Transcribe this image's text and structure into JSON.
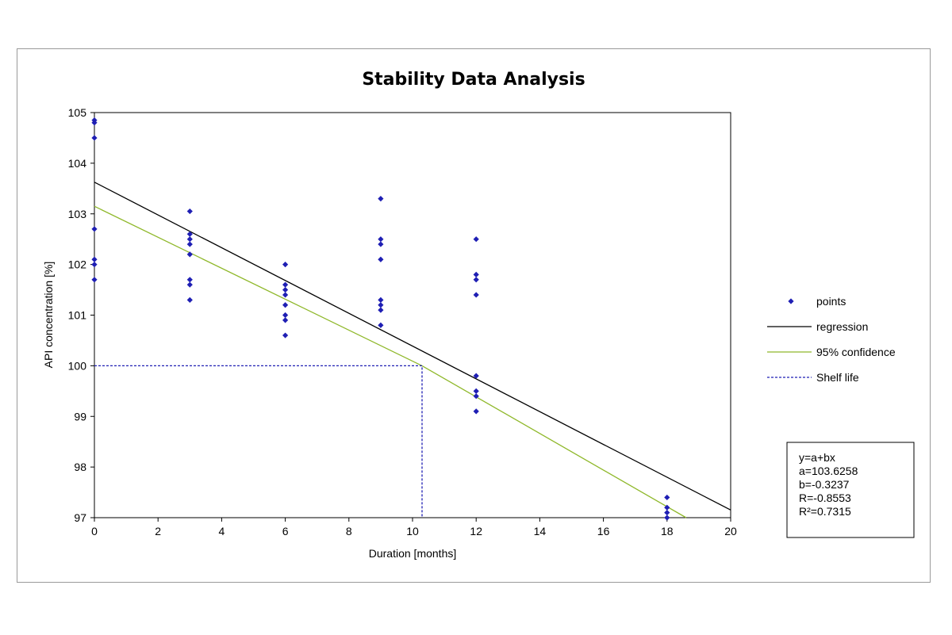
{
  "chart_data": {
    "type": "scatter",
    "title": "Stability Data Analysis",
    "xlabel": "Duration [months]",
    "ylabel": "API concentration [%]",
    "xlim": [
      0,
      20
    ],
    "ylim": [
      97,
      105
    ],
    "x_ticks": [
      0,
      2,
      4,
      6,
      8,
      10,
      12,
      14,
      16,
      18,
      20
    ],
    "y_ticks": [
      97,
      98,
      99,
      100,
      101,
      102,
      103,
      104,
      105
    ],
    "grid": false,
    "legend_position": "right",
    "legend": [
      {
        "label": "points",
        "kind": "marker",
        "color": "#1f1fb4"
      },
      {
        "label": "regression",
        "kind": "line",
        "color": "#000000"
      },
      {
        "label": "95% confidence",
        "kind": "line",
        "color": "#8fb82a"
      },
      {
        "label": "Shelf life",
        "kind": "dashed",
        "color": "#1f1fb4"
      }
    ],
    "series": [
      {
        "name": "points",
        "color": "#1f1fb4",
        "points": [
          [
            0,
            104.85
          ],
          [
            0,
            104.8
          ],
          [
            0,
            104.5
          ],
          [
            0,
            102.7
          ],
          [
            0,
            102.1
          ],
          [
            0,
            102.0
          ],
          [
            0,
            101.7
          ],
          [
            3,
            103.05
          ],
          [
            3,
            102.6
          ],
          [
            3,
            102.5
          ],
          [
            3,
            102.4
          ],
          [
            3,
            102.2
          ],
          [
            3,
            101.7
          ],
          [
            3,
            101.6
          ],
          [
            3,
            101.3
          ],
          [
            6,
            102.0
          ],
          [
            6,
            101.6
          ],
          [
            6,
            101.5
          ],
          [
            6,
            101.4
          ],
          [
            6,
            101.2
          ],
          [
            6,
            101.0
          ],
          [
            6,
            100.9
          ],
          [
            6,
            100.6
          ],
          [
            9,
            103.3
          ],
          [
            9,
            102.5
          ],
          [
            9,
            102.4
          ],
          [
            9,
            102.1
          ],
          [
            9,
            101.3
          ],
          [
            9,
            101.2
          ],
          [
            9,
            101.1
          ],
          [
            9,
            100.8
          ],
          [
            12,
            102.5
          ],
          [
            12,
            101.8
          ],
          [
            12,
            101.7
          ],
          [
            12,
            101.4
          ],
          [
            12,
            99.8
          ],
          [
            12,
            99.5
          ],
          [
            12,
            99.4
          ],
          [
            12,
            99.1
          ],
          [
            18,
            97.4
          ],
          [
            18,
            97.2
          ],
          [
            18,
            97.1
          ],
          [
            18,
            97.0
          ]
        ]
      },
      {
        "name": "regression",
        "color": "#000000",
        "line": [
          [
            0,
            103.6258
          ],
          [
            20,
            97.1518
          ]
        ]
      },
      {
        "name": "95% confidence",
        "color": "#8fb82a",
        "line": [
          [
            0,
            103.15
          ],
          [
            10.3,
            100.0
          ],
          [
            18.6,
            97.0
          ]
        ]
      },
      {
        "name": "Shelf life",
        "color": "#1f1fb4",
        "dashed": true,
        "line": [
          [
            0,
            100.0
          ],
          [
            10.3,
            100.0
          ],
          [
            10.3,
            97.0
          ]
        ]
      }
    ],
    "stats_box": [
      "y=a+bx",
      "a=103.6258",
      "b=-0.3237",
      "R=-0.8553",
      "R²=0.7315"
    ]
  }
}
